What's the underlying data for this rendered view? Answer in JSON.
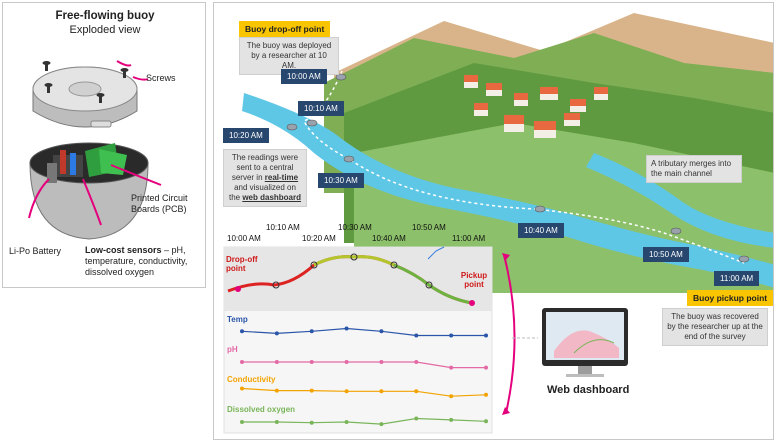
{
  "buoy": {
    "title": "Free-flowing buoy",
    "subtitle": "Exploded view",
    "screws_label": "Screws",
    "pcb_label": "Printed Circuit Boards (PCB)",
    "battery_label": "Li-Po Battery",
    "sensors_bold": "Low-cost sensors",
    "sensors_rest": " – pH, temperature, conductivity, dissolved oxygen"
  },
  "map": {
    "dropoff_tag": "Buoy drop-off point",
    "dropoff_text": "The buoy was deployed by a researcher at 10 AM.",
    "pickup_tag": "Buoy pickup point",
    "pickup_text": "The buoy was recovered by the researcher up at the end of the survey",
    "tributary_text": "A tributary merges into the main channel",
    "server_text_1": "The readings were sent to a central server in ",
    "server_text_rt": "real-time",
    "server_text_2": " and visualized on the ",
    "server_text_wd": "web dashboard",
    "times": [
      "10:00 AM",
      "10:10 AM",
      "10:20 AM",
      "10:30 AM",
      "10:40 AM",
      "10:50 AM",
      "11:00 AM"
    ]
  },
  "chart": {
    "time_labels": [
      "10:00 AM",
      "10:10 AM",
      "10:20 AM",
      "10:30 AM",
      "10:40 AM",
      "10:50 AM",
      "11:00 AM"
    ],
    "dropoff_label": "Drop-off point",
    "pickup_label": "Pickup point",
    "series": [
      {
        "name": "Temp",
        "color": "#2a55a8",
        "values": [
          0.55,
          0.4,
          0.55,
          0.75,
          0.55,
          0.25,
          0.25,
          0.25
        ]
      },
      {
        "name": "pH",
        "color": "#e36aa4",
        "values": [
          0.5,
          0.5,
          0.5,
          0.5,
          0.5,
          0.5,
          0.1,
          0.1
        ]
      },
      {
        "name": "Conductivity",
        "color": "#f3a300",
        "values": [
          0.75,
          0.6,
          0.6,
          0.55,
          0.55,
          0.55,
          0.2,
          0.3
        ]
      },
      {
        "name": "Dissolved oxygen",
        "color": "#7ab55a",
        "values": [
          0.5,
          0.5,
          0.45,
          0.5,
          0.35,
          0.75,
          0.65,
          0.55
        ]
      }
    ]
  },
  "dashboard": {
    "label": "Web dashboard"
  }
}
